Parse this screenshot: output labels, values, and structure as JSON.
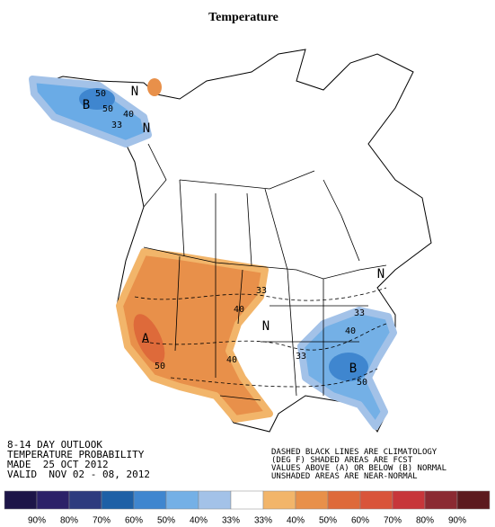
{
  "header": {
    "title": "Temperature"
  },
  "map": {
    "labels": [
      "N",
      "50",
      "B",
      "50",
      "40",
      "33",
      "N",
      "33",
      "40",
      "A",
      "50",
      "40",
      "N",
      "N",
      "33",
      "40",
      "33",
      "B",
      "50"
    ]
  },
  "notes": {
    "left": [
      "8-14 DAY OUTLOOK",
      "TEMPERATURE PROBABILITY",
      "MADE  25 OCT 2012",
      "VALID  NOV 02 - 08, 2012"
    ],
    "right": [
      "DASHED BLACK LINES ARE CLIMATOLOGY",
      "(DEG F) SHADED AREAS ARE FCST",
      "VALUES ABOVE (A) OR BELOW (B) NORMAL",
      "UNSHADED AREAS ARE NEAR-NORMAL"
    ]
  },
  "legend": {
    "colors": [
      "#1d1548",
      "#2c2168",
      "#2d3b7e",
      "#1e60a6",
      "#3f86cf",
      "#74b0e6",
      "#a3c2e8",
      "#ffffff",
      "#f2b56a",
      "#e8904a",
      "#de6a3a",
      "#d9543a",
      "#c7363a",
      "#8b2a32",
      "#5c1a1e"
    ],
    "labels": [
      "90%",
      "80%",
      "70%",
      "60%",
      "50%",
      "40%",
      "33%",
      "33%",
      "40%",
      "50%",
      "60%",
      "70%",
      "80%",
      "90%"
    ]
  }
}
